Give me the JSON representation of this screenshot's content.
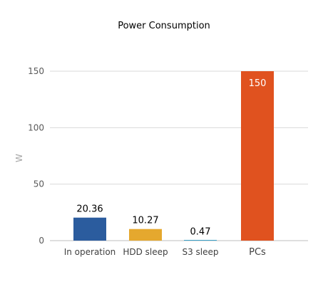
{
  "chart_data": {
    "type": "bar",
    "title": "Power Consumption",
    "ylabel": "W",
    "xlabel": "",
    "categories": [
      "In operation",
      "HDD sleep",
      "S3 sleep",
      "PCs"
    ],
    "values": [
      20.36,
      10.27,
      0.47,
      150
    ],
    "value_labels": [
      "20.36",
      "10.27",
      "0.47",
      "150"
    ],
    "colors": [
      "#2b5c9e",
      "#e5a82e",
      "#3aa0c8",
      "#e0521f"
    ],
    "ylim": [
      0,
      150
    ],
    "yticks": [
      0,
      50,
      100,
      150
    ],
    "grid": true,
    "legend": "none"
  }
}
